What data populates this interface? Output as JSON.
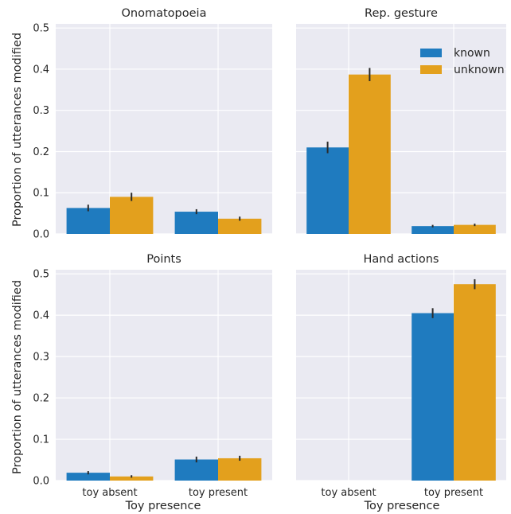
{
  "colors": {
    "known": "#1f7bbf",
    "unknown": "#e3a01d",
    "panel": "#eaeaf2"
  },
  "chart_data": {
    "type": "bar",
    "categories": [
      "toy absent",
      "toy present"
    ],
    "xlabel": "Toy presence",
    "ylabel": "Proportion of utterances modified",
    "ylim": [
      0,
      0.51
    ],
    "yticks": [
      "0.0",
      "0.1",
      "0.2",
      "0.3",
      "0.4",
      "0.5"
    ],
    "legend": {
      "placement": "top-right",
      "entries": [
        "known",
        "unknown"
      ]
    },
    "panels": [
      {
        "title": "Onomatopoeia",
        "series": [
          {
            "name": "known",
            "values": [
              0.063,
              0.054
            ],
            "err": [
              0.008,
              0.006
            ]
          },
          {
            "name": "unknown",
            "values": [
              0.09,
              0.037
            ],
            "err": [
              0.01,
              0.005
            ]
          }
        ]
      },
      {
        "title": "Rep. gesture",
        "series": [
          {
            "name": "known",
            "values": [
              0.21,
              0.019
            ],
            "err": [
              0.014,
              0.003
            ]
          },
          {
            "name": "unknown",
            "values": [
              0.387,
              0.022
            ],
            "err": [
              0.016,
              0.003
            ]
          }
        ]
      },
      {
        "title": "Points",
        "series": [
          {
            "name": "known",
            "values": [
              0.019,
              0.051
            ],
            "err": [
              0.004,
              0.007
            ]
          },
          {
            "name": "unknown",
            "values": [
              0.01,
              0.054
            ],
            "err": [
              0.003,
              0.006
            ]
          }
        ]
      },
      {
        "title": "Hand actions",
        "series": [
          {
            "name": "known",
            "values": [
              0,
              0.405
            ],
            "err": [
              0,
              0.012
            ]
          },
          {
            "name": "unknown",
            "values": [
              0,
              0.475
            ],
            "err": [
              0,
              0.012
            ]
          }
        ]
      }
    ]
  }
}
